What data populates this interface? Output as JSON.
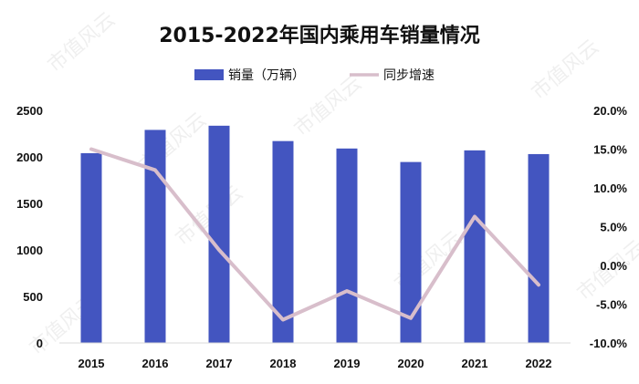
{
  "watermark": "市值风云",
  "chart_data": {
    "type": "bar",
    "title": "2015-2022年国内乘用车销量情况",
    "categories": [
      "2015",
      "2016",
      "2017",
      "2018",
      "2019",
      "2020",
      "2021",
      "2022"
    ],
    "series": [
      {
        "name": "销量（万辆）",
        "type": "bar",
        "axis": "left",
        "color": "#4355C0",
        "values": [
          2040,
          2290,
          2335,
          2170,
          2090,
          1945,
          2070,
          2030
        ]
      },
      {
        "name": "同步增速",
        "type": "line",
        "axis": "right",
        "color": "#D8BECB",
        "values": [
          15.0,
          12.3,
          2.0,
          -7.0,
          -3.3,
          -6.8,
          6.3,
          -2.5
        ]
      }
    ],
    "y_left": {
      "ylim": [
        0,
        2500
      ],
      "ticks": [
        "0",
        "500",
        "1000",
        "1500",
        "2000",
        "2500"
      ]
    },
    "y_right": {
      "ylim": [
        -10,
        20
      ],
      "ticks": [
        "-10.0%",
        "-5.0%",
        "0.0%",
        "5.0%",
        "10.0%",
        "15.0%",
        "20.0%"
      ]
    },
    "legend_position": "top-center",
    "grid": false
  }
}
